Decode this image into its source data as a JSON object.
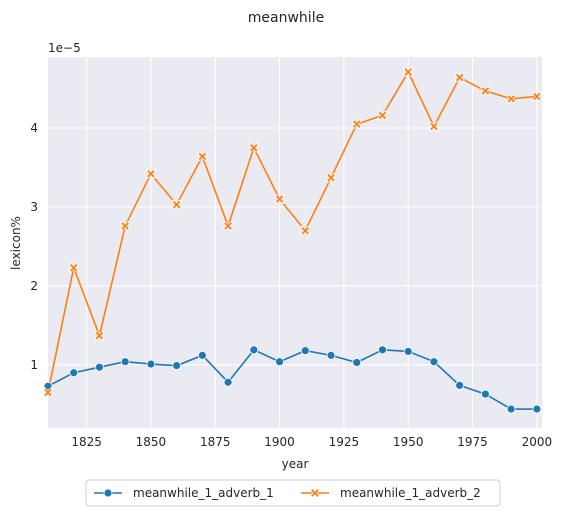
{
  "chart_data": {
    "type": "line",
    "title": "meanwhile",
    "xlabel": "year",
    "ylabel": "lexicon%",
    "y_scale_note": "1e−5",
    "xlim": [
      1810,
      2002
    ],
    "ylim": [
      0.2,
      4.9
    ],
    "xticks": [
      1825,
      1850,
      1875,
      1900,
      1925,
      1950,
      1975,
      2000
    ],
    "yticks": [
      1,
      2,
      3,
      4
    ],
    "grid": true,
    "legend_position": "bottom-center",
    "x": [
      1810,
      1820,
      1830,
      1840,
      1850,
      1860,
      1870,
      1880,
      1890,
      1900,
      1910,
      1920,
      1930,
      1940,
      1950,
      1960,
      1970,
      1980,
      1990,
      2000
    ],
    "series": [
      {
        "name": "meanwhile_1_adverb_1",
        "color": "#1f77b4",
        "marker": "circle",
        "values": [
          0.73,
          0.9,
          0.97,
          1.04,
          1.01,
          0.99,
          1.12,
          0.78,
          1.19,
          1.04,
          1.18,
          1.12,
          1.03,
          1.19,
          1.17,
          1.04,
          0.74,
          0.63,
          0.44,
          0.44
        ]
      },
      {
        "name": "meanwhile_1_adverb_2",
        "color": "#ff7f0e",
        "marker": "x",
        "values": [
          0.65,
          2.23,
          1.37,
          2.76,
          3.42,
          3.03,
          3.64,
          2.76,
          3.75,
          3.1,
          2.7,
          3.37,
          4.05,
          4.16,
          4.71,
          4.02,
          4.64,
          4.47,
          4.37,
          4.4
        ]
      }
    ]
  }
}
